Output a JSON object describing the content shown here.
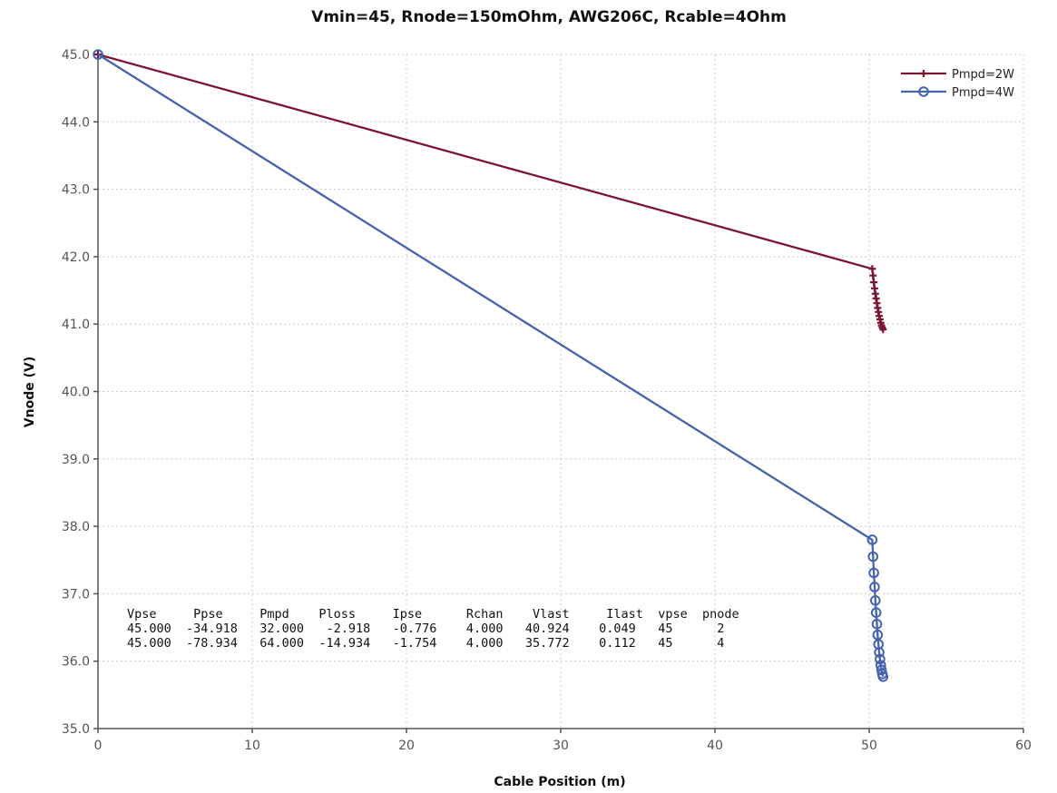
{
  "chart_data": {
    "type": "line",
    "title": "Vmin=45, Rnode=150mOhm, AWG206C, Rcable=4Ohm",
    "xlabel": "Cable Position (m)",
    "ylabel": "Vnode (V)",
    "xlim": [
      0,
      60
    ],
    "ylim": [
      35.0,
      45.0
    ],
    "xticks": [
      0,
      10,
      20,
      30,
      40,
      50,
      60
    ],
    "yticks": [
      35.0,
      36.0,
      37.0,
      38.0,
      39.0,
      40.0,
      41.0,
      42.0,
      43.0,
      44.0,
      45.0
    ],
    "xtick_labels": [
      "0",
      "10",
      "20",
      "30",
      "40",
      "50",
      "60"
    ],
    "ytick_labels": [
      "35.0",
      "36.0",
      "37.0",
      "38.0",
      "39.0",
      "40.0",
      "41.0",
      "42.0",
      "43.0",
      "44.0",
      "45.0"
    ],
    "grid": true,
    "legend_position": "top-right",
    "series": [
      {
        "name": "Pmpd=2W",
        "color": "#7b1530",
        "marker": "plus",
        "x": [
          0,
          50.2,
          50.25,
          50.3,
          50.35,
          50.4,
          50.45,
          50.5,
          50.55,
          50.6,
          50.65,
          50.7,
          50.75,
          50.8,
          50.85,
          50.9
        ],
        "y": [
          45.0,
          41.82,
          41.72,
          41.62,
          41.53,
          41.45,
          41.38,
          41.31,
          41.24,
          41.18,
          41.12,
          41.07,
          41.02,
          40.98,
          40.95,
          40.92
        ]
      },
      {
        "name": "Pmpd=4W",
        "color": "#4564ad",
        "marker": "circle",
        "x": [
          0,
          50.2,
          50.25,
          50.3,
          50.35,
          50.4,
          50.45,
          50.5,
          50.55,
          50.6,
          50.65,
          50.7,
          50.75,
          50.8,
          50.85,
          50.9
        ],
        "y": [
          45.0,
          37.8,
          37.55,
          37.31,
          37.1,
          36.9,
          36.72,
          36.55,
          36.39,
          36.25,
          36.13,
          36.03,
          35.94,
          35.87,
          35.81,
          35.77
        ]
      }
    ],
    "table": {
      "header": "Vpse     Ppse     Pmpd    Ploss     Ipse      Rchan    Vlast     Ilast  vpse  pnode",
      "rows": [
        "45.000  -34.918   32.000   -2.918   -0.776    4.000   40.924    0.049   45      2",
        "45.000  -78.934   64.000  -14.934   -1.754    4.000   35.772    0.112   45      4"
      ]
    }
  }
}
